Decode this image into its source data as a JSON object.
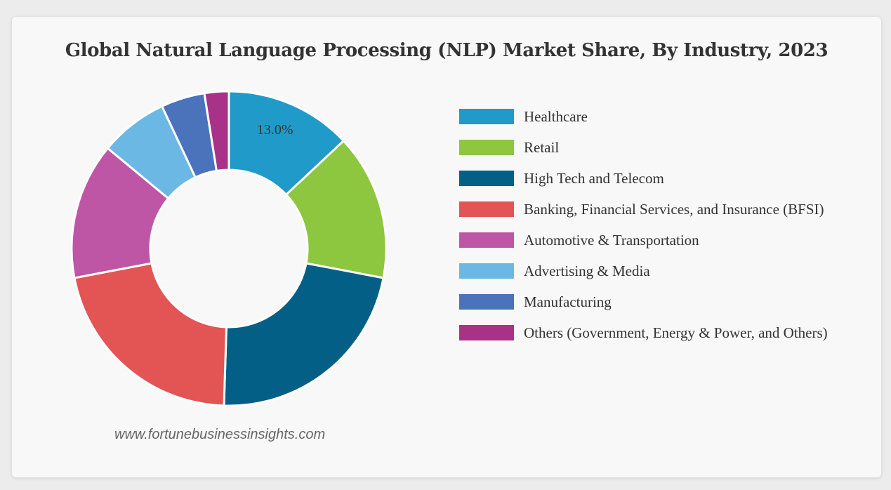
{
  "chart_data": {
    "type": "pie",
    "donut": true,
    "title": "Global Natural Language Processing (NLP) Market Share, By Industry, 2023",
    "categories": [
      "Healthcare",
      "Retail",
      "High Tech and Telecom",
      "Banking, Financial Services, and Insurance (BFSI)",
      "Automotive & Transportation",
      "Advertising & Media",
      "Manufacturing",
      "Others (Government, Energy & Power, and Others)"
    ],
    "values": [
      13.0,
      15.0,
      22.5,
      21.5,
      14.0,
      7.0,
      4.5,
      2.5
    ],
    "colors": [
      "#1f9ac9",
      "#8dc63f",
      "#035f86",
      "#e35454",
      "#bf56a5",
      "#6cb8e5",
      "#4a73bb",
      "#a93289"
    ],
    "data_labels": [
      "13.0%",
      "",
      "",
      "",
      "",
      "",
      "",
      ""
    ],
    "legend_position": "right",
    "source": "www.fortunebusinessinsights.com"
  }
}
